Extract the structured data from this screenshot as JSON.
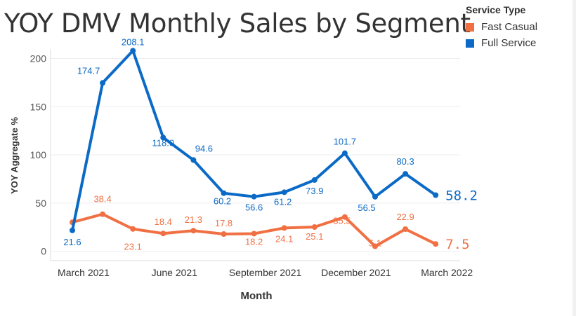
{
  "chart_data": {
    "type": "line",
    "title": "YOY DMV Monthly Sales by Segment",
    "xlabel": "Month",
    "ylabel": "YOY Aggregate %",
    "ylim": [
      0,
      208
    ],
    "yticks": [
      0,
      50,
      100,
      150,
      200
    ],
    "x_tick_labels": [
      {
        "index": 0,
        "label": "March 2021"
      },
      {
        "index": 3,
        "label": "June 2021"
      },
      {
        "index": 6,
        "label": "September 2021"
      },
      {
        "index": 9,
        "label": "December 2021"
      },
      {
        "index": 12,
        "label": "March 2022"
      }
    ],
    "categories": [
      "Mar 2021",
      "Apr 2021",
      "May 2021",
      "Jun 2021",
      "Jul 2021",
      "Aug 2021",
      "Sep 2021",
      "Oct 2021",
      "Nov 2021",
      "Dec 2021",
      "Jan 2022",
      "Feb 2022",
      "Mar 2022"
    ],
    "legend_title": "Service Type",
    "series": [
      {
        "name": "Fast Casual",
        "color": "#f07043",
        "values": [
          30.0,
          38.4,
          23.1,
          18.4,
          21.3,
          17.8,
          18.2,
          24.1,
          25.1,
          35.5,
          5.1,
          22.9,
          7.5
        ],
        "labels": [
          "",
          "38.4",
          "23.1",
          "18.4",
          "21.3",
          "17.8",
          "18.2",
          "24.1",
          "25.1",
          "35.5",
          "5.1",
          "22.9",
          "7.5"
        ],
        "end_label": "7.5"
      },
      {
        "name": "Full Service",
        "color": "#0b6ac6",
        "values": [
          21.6,
          174.7,
          208.1,
          118.0,
          94.6,
          60.2,
          56.6,
          61.2,
          73.9,
          101.7,
          56.5,
          80.3,
          58.2
        ],
        "labels": [
          "21.6",
          "174.7",
          "208.1",
          "118.0",
          "94.6",
          "60.2",
          "56.6",
          "61.2",
          "73.9",
          "101.7",
          "56.5",
          "80.3",
          "58.2"
        ],
        "end_label": "58.2"
      }
    ]
  }
}
